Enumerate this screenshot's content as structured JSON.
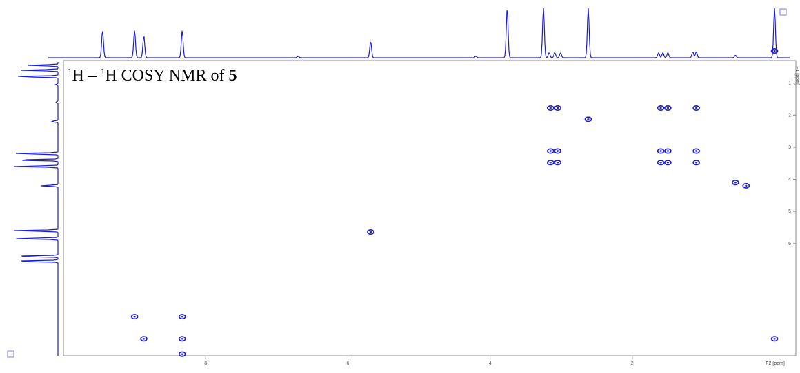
{
  "chart_data": {
    "type": "heatmap",
    "title_parts": {
      "sup1": "1",
      "h1": "H – ",
      "sup2": "1",
      "h2": "H COSY NMR of ",
      "compound": "5"
    },
    "x_axis": {
      "label": "F2 [ppm]",
      "range": [
        10.0,
        -0.3
      ],
      "tick_labels": [
        "8",
        "6",
        "4",
        "2"
      ]
    },
    "y_axis": {
      "label": "F1 [ppm]",
      "range": [
        0.3,
        9.5
      ],
      "tick_labels": [
        "1",
        "2",
        "3",
        "4",
        "5",
        "6"
      ]
    },
    "color": "#1a1adb",
    "f2_projection": [
      {
        "ppm": 9.45,
        "h": 0.55
      },
      {
        "ppm": 9.0,
        "h": 0.55
      },
      {
        "ppm": 8.87,
        "h": 0.45
      },
      {
        "ppm": 8.33,
        "h": 0.55
      },
      {
        "ppm": 6.7,
        "h": 0.03
      },
      {
        "ppm": 5.68,
        "h": 0.33
      },
      {
        "ppm": 4.2,
        "h": 0.03
      },
      {
        "ppm": 3.76,
        "h": 1.0
      },
      {
        "ppm": 3.25,
        "h": 1.0
      },
      {
        "ppm": 3.17,
        "h": 0.1
      },
      {
        "ppm": 3.09,
        "h": 0.1
      },
      {
        "ppm": 3.01,
        "h": 0.1
      },
      {
        "ppm": 2.62,
        "h": 1.0
      },
      {
        "ppm": 1.63,
        "h": 0.1
      },
      {
        "ppm": 1.57,
        "h": 0.1
      },
      {
        "ppm": 1.5,
        "h": 0.1
      },
      {
        "ppm": 1.15,
        "h": 0.12
      },
      {
        "ppm": 1.1,
        "h": 0.12
      },
      {
        "ppm": 0.55,
        "h": 0.05
      },
      {
        "ppm": 0.0,
        "h": 1.0
      }
    ],
    "f1_projection": [
      {
        "ppm": 0.45,
        "h": 0.6
      },
      {
        "ppm": 0.6,
        "h": 0.75
      },
      {
        "ppm": 0.8,
        "h": 0.9
      },
      {
        "ppm": 1.05,
        "h": 0.05
      },
      {
        "ppm": 1.6,
        "h": 0.05
      },
      {
        "ppm": 2.2,
        "h": 0.15
      },
      {
        "ppm": 3.2,
        "h": 0.9
      },
      {
        "ppm": 3.4,
        "h": 0.9
      },
      {
        "ppm": 3.6,
        "h": 0.9
      },
      {
        "ppm": 4.2,
        "h": 0.35
      },
      {
        "ppm": 5.6,
        "h": 0.9
      },
      {
        "ppm": 5.85,
        "h": 0.88
      },
      {
        "ppm": 6.4,
        "h": 0.92
      },
      {
        "ppm": 6.55,
        "h": 0.92
      }
    ],
    "cross_peaks": [
      {
        "f2": 8.33,
        "f1": 9.45
      },
      {
        "f2": 3.15,
        "f1": 3.48
      },
      {
        "f2": 3.05,
        "f1": 3.48
      },
      {
        "f2": 3.15,
        "f1": 3.12
      },
      {
        "f2": 3.05,
        "f1": 3.12
      },
      {
        "f2": 1.6,
        "f1": 3.48
      },
      {
        "f2": 1.5,
        "f1": 3.48
      },
      {
        "f2": 1.6,
        "f1": 3.12
      },
      {
        "f2": 1.5,
        "f1": 3.12
      },
      {
        "f2": 1.1,
        "f1": 3.48
      },
      {
        "f2": 1.1,
        "f1": 3.12
      },
      {
        "f2": 0.55,
        "f1": 4.1
      },
      {
        "f2": 0.4,
        "f1": 4.2
      },
      {
        "f2": 0.0,
        "f1": 0.0
      },
      {
        "f2": 3.15,
        "f1": 1.78
      },
      {
        "f2": 3.05,
        "f1": 1.78
      },
      {
        "f2": 1.6,
        "f1": 1.78
      },
      {
        "f2": 1.5,
        "f1": 1.78
      },
      {
        "f2": 1.1,
        "f1": 1.78
      },
      {
        "f2": 2.62,
        "f1": 2.13
      },
      {
        "f2": 5.68,
        "f1": 5.64
      },
      {
        "f2": 9.0,
        "f1": 8.28
      },
      {
        "f2": 8.33,
        "f1": 8.28
      },
      {
        "f2": 8.87,
        "f1": 8.97
      },
      {
        "f2": 8.33,
        "f1": 8.97
      },
      {
        "f2": 0.0,
        "f1": 8.97
      }
    ]
  }
}
